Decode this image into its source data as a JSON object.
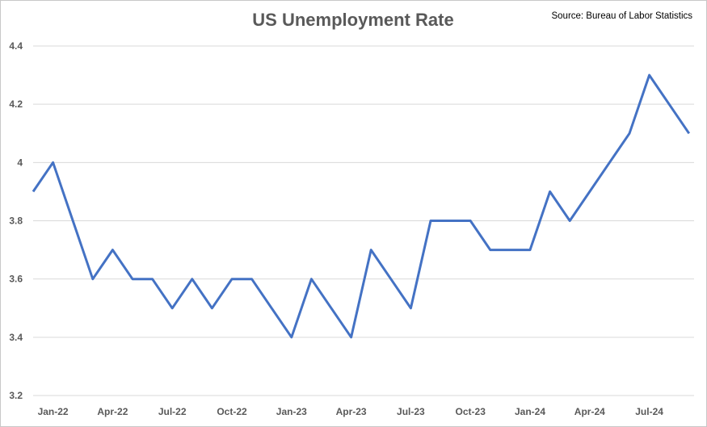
{
  "chart_data": {
    "type": "line",
    "title": "US Unemployment Rate",
    "source_note": "Source: Bureau of Labor Statistics",
    "xlabel": "",
    "ylabel": "",
    "ylim": [
      3.2,
      4.4
    ],
    "yticks": [
      3.2,
      3.4,
      3.6,
      3.8,
      4.0,
      4.2,
      4.4
    ],
    "ytick_labels": [
      "3.2",
      "3.4",
      "3.6",
      "3.8",
      "4",
      "4.2",
      "4.4"
    ],
    "xtick_labels": [
      "Jan-22",
      "Apr-22",
      "Jul-22",
      "Oct-22",
      "Jan-23",
      "Apr-23",
      "Jul-23",
      "Oct-23",
      "Jan-24",
      "Apr-24",
      "Jul-24"
    ],
    "x": [
      "Dec-21",
      "Jan-22",
      "Feb-22",
      "Mar-22",
      "Apr-22",
      "May-22",
      "Jun-22",
      "Jul-22",
      "Aug-22",
      "Sep-22",
      "Oct-22",
      "Nov-22",
      "Dec-22",
      "Jan-23",
      "Feb-23",
      "Mar-23",
      "Apr-23",
      "May-23",
      "Jun-23",
      "Jul-23",
      "Aug-23",
      "Sep-23",
      "Oct-23",
      "Nov-23",
      "Dec-23",
      "Jan-24",
      "Feb-24",
      "Mar-24",
      "Apr-24",
      "May-24",
      "Jun-24",
      "Jul-24",
      "Aug-24",
      "Sep-24"
    ],
    "series": [
      {
        "values": [
          3.9,
          4.0,
          3.8,
          3.6,
          3.7,
          3.6,
          3.6,
          3.5,
          3.6,
          3.5,
          3.6,
          3.6,
          3.5,
          3.4,
          3.6,
          3.5,
          3.4,
          3.7,
          3.6,
          3.5,
          3.8,
          3.8,
          3.8,
          3.7,
          3.7,
          3.7,
          3.9,
          3.8,
          3.9,
          4.0,
          4.1,
          4.3,
          4.2,
          4.1
        ],
        "color": "#4472c4"
      }
    ],
    "grid": true,
    "legend": "none"
  }
}
